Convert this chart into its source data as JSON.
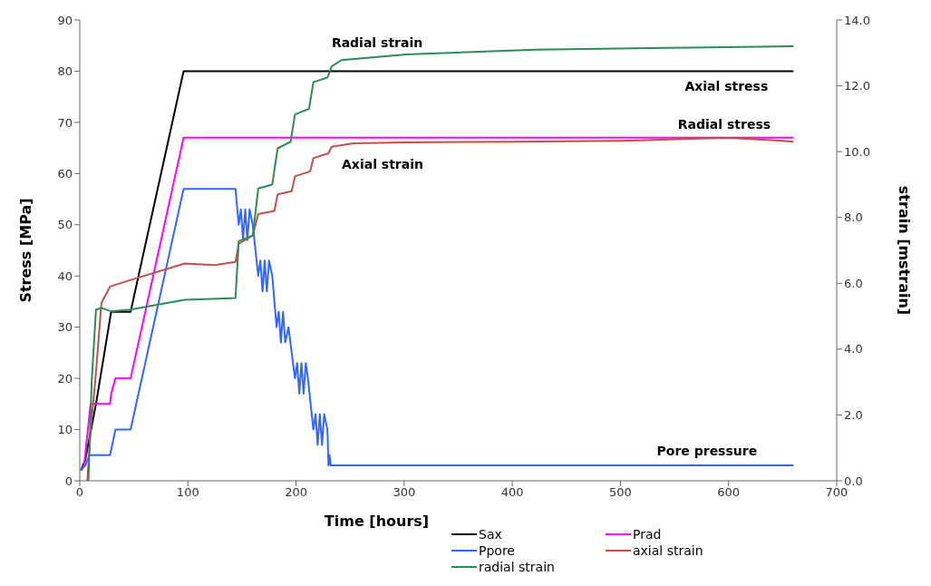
{
  "chart_data": {
    "type": "line",
    "xlabel": "Time [hours]",
    "ylabel": "Stress [MPa]",
    "y2label": "strain [mstrain]",
    "xlim": [
      0,
      700
    ],
    "xticks": [
      0,
      100,
      200,
      300,
      400,
      500,
      600,
      700
    ],
    "ylim": [
      0,
      90
    ],
    "yticks": [
      0,
      10,
      20,
      30,
      40,
      50,
      60,
      70,
      80,
      90
    ],
    "y2lim": [
      0,
      14
    ],
    "y2ticks": [
      {
        "value": 0,
        "label": "0.0"
      },
      {
        "value": 2,
        "label": "2.0"
      },
      {
        "value": 4,
        "label": "4.0"
      },
      {
        "value": 6,
        "label": "6.0"
      },
      {
        "value": 8,
        "label": "8.0"
      },
      {
        "value": 10,
        "label": "10.0"
      },
      {
        "value": 12,
        "label": "12.0"
      },
      {
        "value": 14,
        "label": "14.0"
      }
    ],
    "grid": false,
    "legend": "bottom right",
    "marker": "none",
    "line_style": "solid",
    "series": [
      {
        "name": "Sax",
        "color": "#000000",
        "x": [
          1,
          5,
          15,
          29,
          47,
          96,
          660
        ],
        "values": [
          2,
          4,
          15,
          33,
          33,
          80,
          80
        ]
      },
      {
        "name": "Prad",
        "color": "#ff00ff",
        "x": [
          1,
          4,
          10,
          28,
          29,
          33,
          47,
          96,
          660
        ],
        "values": [
          2,
          3,
          15,
          15,
          17,
          20,
          20,
          67,
          67
        ]
      },
      {
        "name": "Ppore",
        "color": "#3366ff",
        "x": [
          1,
          5,
          9,
          28,
          33,
          47,
          96,
          144,
          147,
          149,
          151,
          153,
          155,
          157,
          160,
          165,
          167,
          169,
          171,
          173,
          175,
          178,
          182,
          184,
          186,
          188,
          190,
          193,
          199,
          201,
          203,
          205,
          207,
          209,
          211,
          216,
          218,
          220,
          222,
          224,
          226,
          229,
          230,
          231,
          232,
          233,
          660
        ],
        "values": [
          2,
          3,
          5,
          5,
          10,
          10,
          57,
          57,
          50,
          53,
          47,
          53,
          47,
          53,
          50,
          40,
          43,
          37,
          43,
          37,
          43,
          40,
          30,
          33,
          27,
          33,
          27,
          30,
          20,
          23,
          17,
          23,
          17,
          23,
          20,
          10,
          13,
          7,
          13,
          7,
          13,
          10,
          3,
          5,
          3,
          3,
          3
        ]
      },
      {
        "name": "axial strain",
        "color": "#c0504d",
        "axis": "y2",
        "x": [
          7,
          10,
          15,
          20,
          28,
          47,
          97,
          125,
          144,
          147,
          160,
          165,
          180,
          183,
          196,
          199,
          213,
          216,
          230,
          233,
          253,
          300,
          400,
          500,
          600,
          640,
          660
        ],
        "values": [
          0,
          1.5,
          3.3,
          5.4,
          5.9,
          6.1,
          6.6,
          6.55,
          6.65,
          7.2,
          7.45,
          8.1,
          8.2,
          8.7,
          8.8,
          9.25,
          9.4,
          9.8,
          9.95,
          10.15,
          10.25,
          10.28,
          10.3,
          10.33,
          10.42,
          10.35,
          10.3
        ]
      },
      {
        "name": "radial strain",
        "color": "#2e8b57",
        "axis": "y2",
        "x": [
          8,
          11,
          15,
          20,
          29,
          47,
          97,
          144,
          147,
          160,
          165,
          178,
          183,
          195,
          199,
          212,
          216,
          229,
          233,
          242,
          302,
          422,
          543,
          660
        ],
        "values": [
          0,
          3,
          5.2,
          5.25,
          5.15,
          5.2,
          5.5,
          5.55,
          7.28,
          7.45,
          8.88,
          9.0,
          10.1,
          10.3,
          11.13,
          11.3,
          12.11,
          12.25,
          12.59,
          12.78,
          12.95,
          13.1,
          13.15,
          13.2
        ]
      }
    ],
    "annotations": [
      "Radial strain",
      "Axial stress",
      "Radial stress",
      "Axial strain",
      "Pore pressure"
    ]
  }
}
